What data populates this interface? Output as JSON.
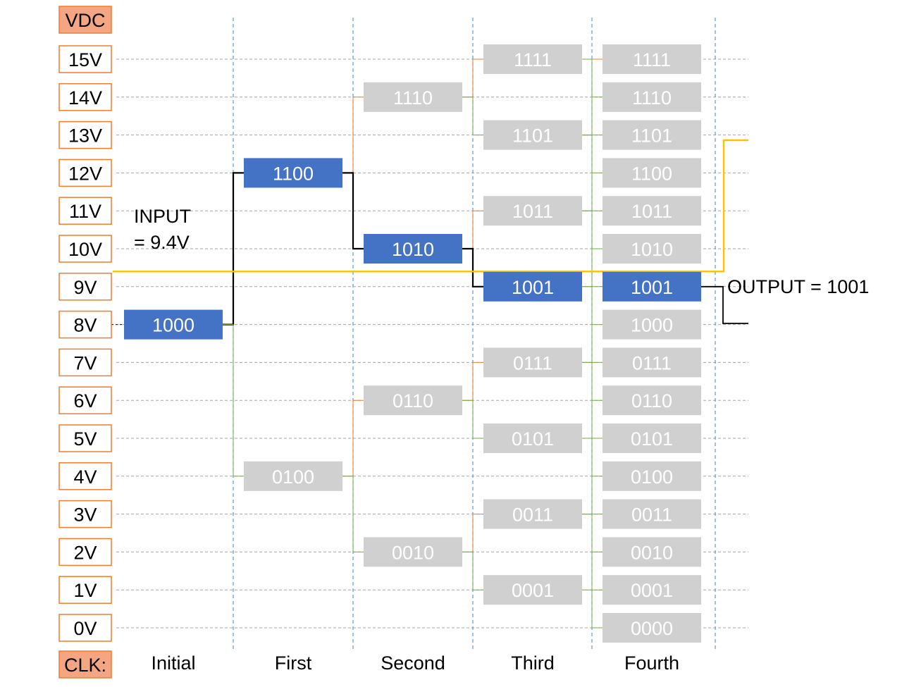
{
  "colors": {
    "voltage_box_border": "#ed7d31",
    "header_box_fill": "#f4a582",
    "active_code_fill": "#4472c4",
    "inactive_code_fill": "#d0d0d0",
    "code_text": "#ffffff",
    "input_line": "#ffc000",
    "clock_divider": "#5b9bd5",
    "grid_line": "#a6a6a6",
    "path_active": "#000000",
    "branch_orange": "#ed7d31",
    "branch_green": "#70ad47"
  },
  "header": {
    "vdc": "VDC",
    "clk": "CLK:"
  },
  "voltages": [
    "15V",
    "14V",
    "13V",
    "12V",
    "11V",
    "10V",
    "9V",
    "8V",
    "7V",
    "6V",
    "5V",
    "4V",
    "3V",
    "2V",
    "1V",
    "0V"
  ],
  "clock_steps": [
    "Initial",
    "First",
    "Second",
    "Third",
    "Fourth"
  ],
  "input_label": {
    "line1": "INPUT",
    "line2": "= 9.4V"
  },
  "output_label": "OUTPUT = 1001",
  "columns": [
    {
      "step": "Initial",
      "codes": [
        {
          "code": "1000",
          "level": 8,
          "active": true
        }
      ]
    },
    {
      "step": "First",
      "codes": [
        {
          "code": "1100",
          "level": 12,
          "active": true
        },
        {
          "code": "0100",
          "level": 4,
          "active": false
        }
      ]
    },
    {
      "step": "Second",
      "codes": [
        {
          "code": "1110",
          "level": 14,
          "active": false
        },
        {
          "code": "1010",
          "level": 10,
          "active": true
        },
        {
          "code": "0110",
          "level": 6,
          "active": false
        },
        {
          "code": "0010",
          "level": 2,
          "active": false
        }
      ]
    },
    {
      "step": "Third",
      "codes": [
        {
          "code": "1111",
          "level": 15,
          "active": false
        },
        {
          "code": "1101",
          "level": 13,
          "active": false
        },
        {
          "code": "1011",
          "level": 11,
          "active": false
        },
        {
          "code": "1001",
          "level": 9,
          "active": true
        },
        {
          "code": "0111",
          "level": 7,
          "active": false
        },
        {
          "code": "0101",
          "level": 5,
          "active": false
        },
        {
          "code": "0011",
          "level": 3,
          "active": false
        },
        {
          "code": "0001",
          "level": 1,
          "active": false
        }
      ]
    },
    {
      "step": "Fourth",
      "codes": [
        {
          "code": "1111",
          "level": 15,
          "active": false
        },
        {
          "code": "1110",
          "level": 14,
          "active": false
        },
        {
          "code": "1101",
          "level": 13,
          "active": false
        },
        {
          "code": "1100",
          "level": 12,
          "active": false
        },
        {
          "code": "1011",
          "level": 11,
          "active": false
        },
        {
          "code": "1010",
          "level": 10,
          "active": false
        },
        {
          "code": "1001",
          "level": 9,
          "active": true
        },
        {
          "code": "1000",
          "level": 8,
          "active": false
        },
        {
          "code": "0111",
          "level": 7,
          "active": false
        },
        {
          "code": "0110",
          "level": 6,
          "active": false
        },
        {
          "code": "0101",
          "level": 5,
          "active": false
        },
        {
          "code": "0100",
          "level": 4,
          "active": false
        },
        {
          "code": "0011",
          "level": 3,
          "active": false
        },
        {
          "code": "0010",
          "level": 2,
          "active": false
        },
        {
          "code": "0001",
          "level": 1,
          "active": false
        },
        {
          "code": "0000",
          "level": 0,
          "active": false
        }
      ]
    }
  ]
}
